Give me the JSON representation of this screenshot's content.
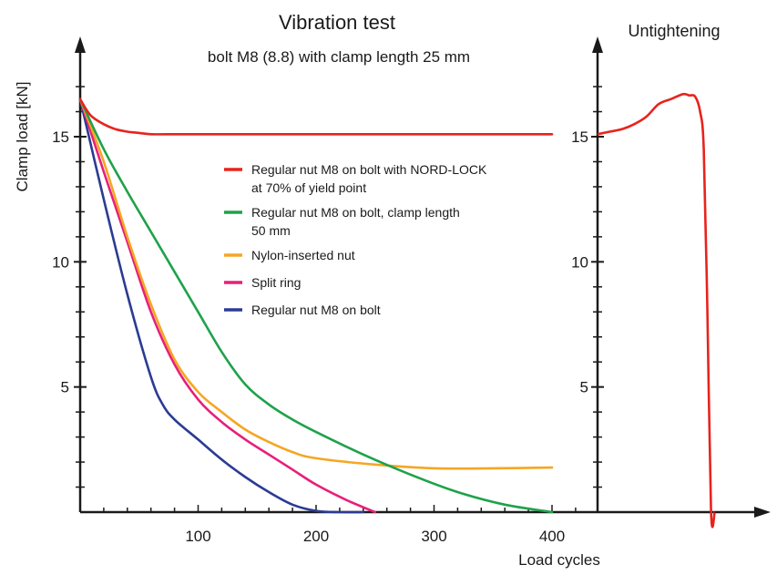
{
  "chart_data": {
    "type": "line",
    "title": "Vibration test",
    "subtitle": "bolt M8 (8.8) with clamp length 25 mm",
    "right_panel_title": "Untightening",
    "xlabel": "Load cycles",
    "ylabel": "Clamp load [kN]",
    "xlim": [
      0,
      440
    ],
    "ylim": [
      0,
      18
    ],
    "x_ticks": [
      100,
      200,
      300,
      400
    ],
    "y_ticks": [
      5,
      10,
      15
    ],
    "legend_position": "center",
    "grid": false,
    "series": [
      {
        "name": "Regular nut M8 on bolt with NORD-LOCK at 70% of yield point",
        "legend_lines": [
          "Regular nut M8 on bolt with NORD-LOCK",
          "at 70% of yield point"
        ],
        "color": "#e8231c",
        "x": [
          0,
          5,
          10,
          20,
          30,
          40,
          50,
          60,
          80,
          100,
          150,
          200,
          250,
          300,
          350,
          400
        ],
        "y": [
          16.5,
          16.1,
          15.8,
          15.5,
          15.3,
          15.2,
          15.15,
          15.1,
          15.1,
          15.1,
          15.1,
          15.1,
          15.1,
          15.1,
          15.1,
          15.1
        ]
      },
      {
        "name": "Regular nut M8 on bolt, clamp length 50 mm",
        "legend_lines": [
          "Regular nut M8 on bolt, clamp length",
          "50 mm"
        ],
        "color": "#1ea24a",
        "x": [
          0,
          20,
          40,
          60,
          80,
          100,
          120,
          140,
          160,
          180,
          200,
          240,
          280,
          320,
          360,
          400
        ],
        "y": [
          16.5,
          14.5,
          12.8,
          11.2,
          9.6,
          8.0,
          6.4,
          5.1,
          4.3,
          3.7,
          3.2,
          2.3,
          1.5,
          0.8,
          0.3,
          0.0
        ]
      },
      {
        "name": "Nylon-inserted nut",
        "legend_lines": [
          "Nylon-inserted nut"
        ],
        "color": "#f5a623",
        "x": [
          0,
          20,
          40,
          60,
          80,
          100,
          120,
          140,
          160,
          180,
          200,
          250,
          300,
          350,
          400
        ],
        "y": [
          16.5,
          14.0,
          11.0,
          8.3,
          6.1,
          4.8,
          4.0,
          3.3,
          2.8,
          2.4,
          2.15,
          1.9,
          1.75,
          1.75,
          1.78
        ]
      },
      {
        "name": "Split ring",
        "legend_lines": [
          "Split ring"
        ],
        "color": "#e81f79",
        "x": [
          0,
          20,
          40,
          60,
          80,
          100,
          120,
          140,
          160,
          180,
          200,
          225,
          250
        ],
        "y": [
          16.5,
          13.6,
          10.8,
          8.0,
          5.9,
          4.5,
          3.6,
          2.9,
          2.3,
          1.7,
          1.1,
          0.5,
          0.0
        ]
      },
      {
        "name": "Regular nut M8 on bolt",
        "legend_lines": [
          "Regular nut M8 on bolt"
        ],
        "color": "#2b3b93",
        "x": [
          0,
          20,
          40,
          60,
          70,
          80,
          100,
          120,
          140,
          160,
          180,
          200,
          220,
          240
        ],
        "y": [
          16.5,
          12.5,
          8.7,
          5.4,
          4.3,
          3.7,
          2.9,
          2.1,
          1.4,
          0.8,
          0.3,
          0.05,
          0.0,
          0.0
        ]
      }
    ],
    "untightening": {
      "name": "Untightening",
      "color": "#e8231c",
      "x": [
        0,
        0.1,
        0.2,
        0.3,
        0.4,
        0.5,
        0.6,
        0.7,
        0.75,
        0.8,
        0.84,
        0.87,
        0.9,
        0.93,
        0.96
      ],
      "y": [
        15.1,
        15.2,
        15.3,
        15.5,
        15.8,
        16.3,
        16.5,
        16.7,
        16.65,
        16.6,
        16.0,
        14.5,
        8.0,
        0.0,
        0.0
      ],
      "xlim": [
        0,
        1.0
      ]
    }
  }
}
